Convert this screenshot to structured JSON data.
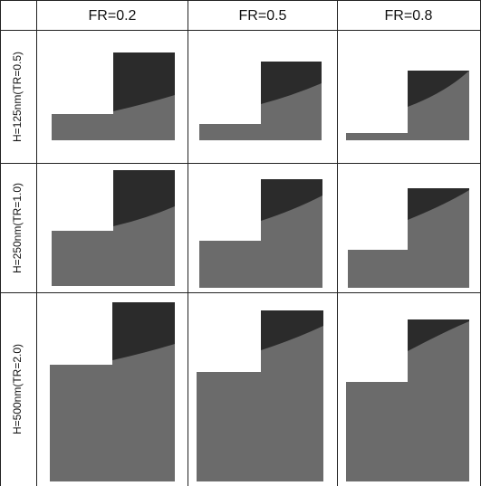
{
  "header": {
    "columns": [
      "FR=0.2",
      "FR=0.5",
      "FR=0.8"
    ]
  },
  "rows": [
    {
      "label": "H=125nm(TR=0.5)"
    },
    {
      "label": "H=250nm(TR=1.0)"
    },
    {
      "label": "H=500nm(TR=2.0)"
    }
  ]
}
